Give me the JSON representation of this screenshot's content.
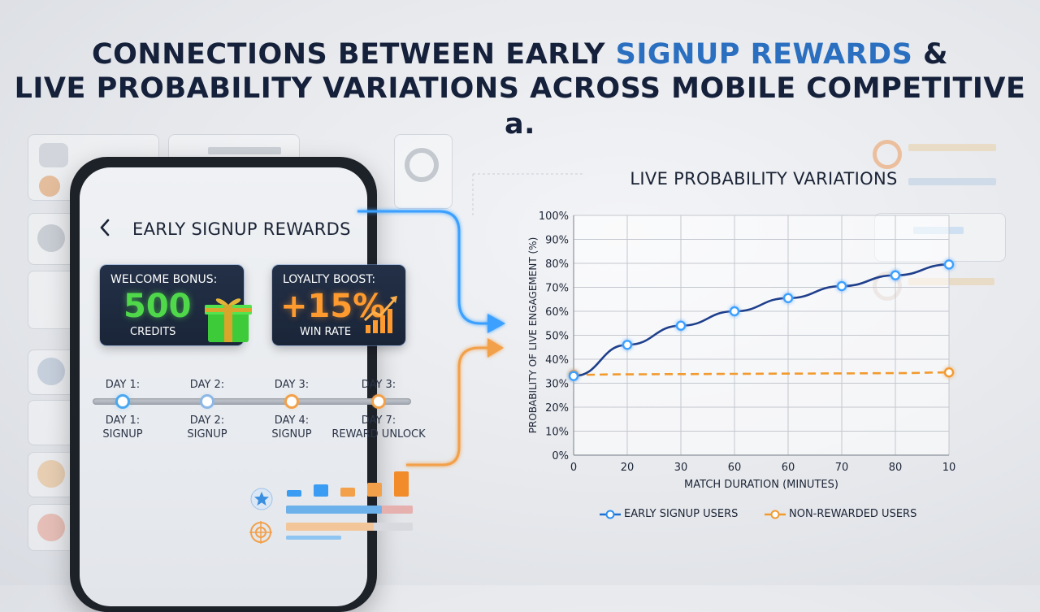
{
  "title": {
    "line1_prefix": "CONNECTIONS BETWEEN EARLY ",
    "line1_accent": "SIGNUP REWARDS",
    "line1_suffix": " &",
    "line2": "LIVE PROBABILITY VARIATIONS ACROSS MOBILE COMPETITIVE a."
  },
  "phone": {
    "back_icon": "chevron-left-icon",
    "screen_title": "EARLY SIGNUP REWARDS",
    "welcome_card": {
      "heading": "WELCOME BONUS:",
      "value": "500",
      "unit": "CREDITS",
      "icon": "gift-icon",
      "value_color": "#4fd94a"
    },
    "loyalty_card": {
      "heading": "LOYALTY BOOST:",
      "value": "+15%",
      "unit": "WIN RATE",
      "icon": "trend-up-icon",
      "value_color": "#ff9a2e"
    },
    "timeline_top": [
      "DAY 1:",
      "DAY 2:",
      "DAY 3:",
      "DAY 3:"
    ],
    "timeline_bottom": [
      {
        "day": "DAY 1:",
        "label": "SIGNUP"
      },
      {
        "day": "DAY 2:",
        "label": "SIGNUP"
      },
      {
        "day": "DAY 4:",
        "label": "SIGNUP"
      },
      {
        "day": "DAY 7:",
        "label": "REWARD UNLOCK"
      }
    ]
  },
  "colors": {
    "blue_series": "#1e3f8c",
    "blue_glow": "#3aa0ff",
    "orange_series": "#f29a2e",
    "accent_title": "#2a6fc0"
  },
  "chart_data": {
    "type": "line",
    "title": "LIVE PROBABILITY VARIATIONS",
    "xlabel": "MATCH DURATION (MINUTES)",
    "ylabel": "PROBABILITY OF LIVE ENGAGEMENT (%)",
    "x_ticks": [
      "0",
      "20",
      "30",
      "60",
      "60",
      "70",
      "80",
      "10"
    ],
    "y_ticks": [
      "0%",
      "10%",
      "20%",
      "30%",
      "40%",
      "50%",
      "60%",
      "70%",
      "80%",
      "90%",
      "100%"
    ],
    "ylim": [
      0,
      100
    ],
    "grid": true,
    "legend_position": "bottom",
    "series": [
      {
        "name": "EARLY SIGNUP USERS",
        "values": [
          33,
          46,
          54,
          60,
          65.5,
          70.5,
          75,
          79.5
        ]
      },
      {
        "name": "NON-REWARDED USERS",
        "values": [
          33.5,
          33.7,
          33.8,
          33.9,
          34.0,
          34.1,
          34.2,
          34.5
        ]
      }
    ]
  }
}
